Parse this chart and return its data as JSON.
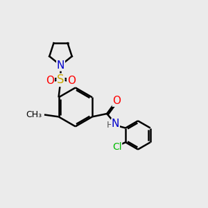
{
  "background_color": "#ebebeb",
  "atom_colors": {
    "C": "#000000",
    "N": "#0000cc",
    "O": "#ff0000",
    "S": "#ccaa00",
    "Cl": "#00bb00",
    "H": "#555555"
  },
  "bond_color": "#000000",
  "bond_width": 1.8,
  "font_size": 10,
  "fig_size": [
    3.0,
    3.0
  ],
  "dpi": 100
}
